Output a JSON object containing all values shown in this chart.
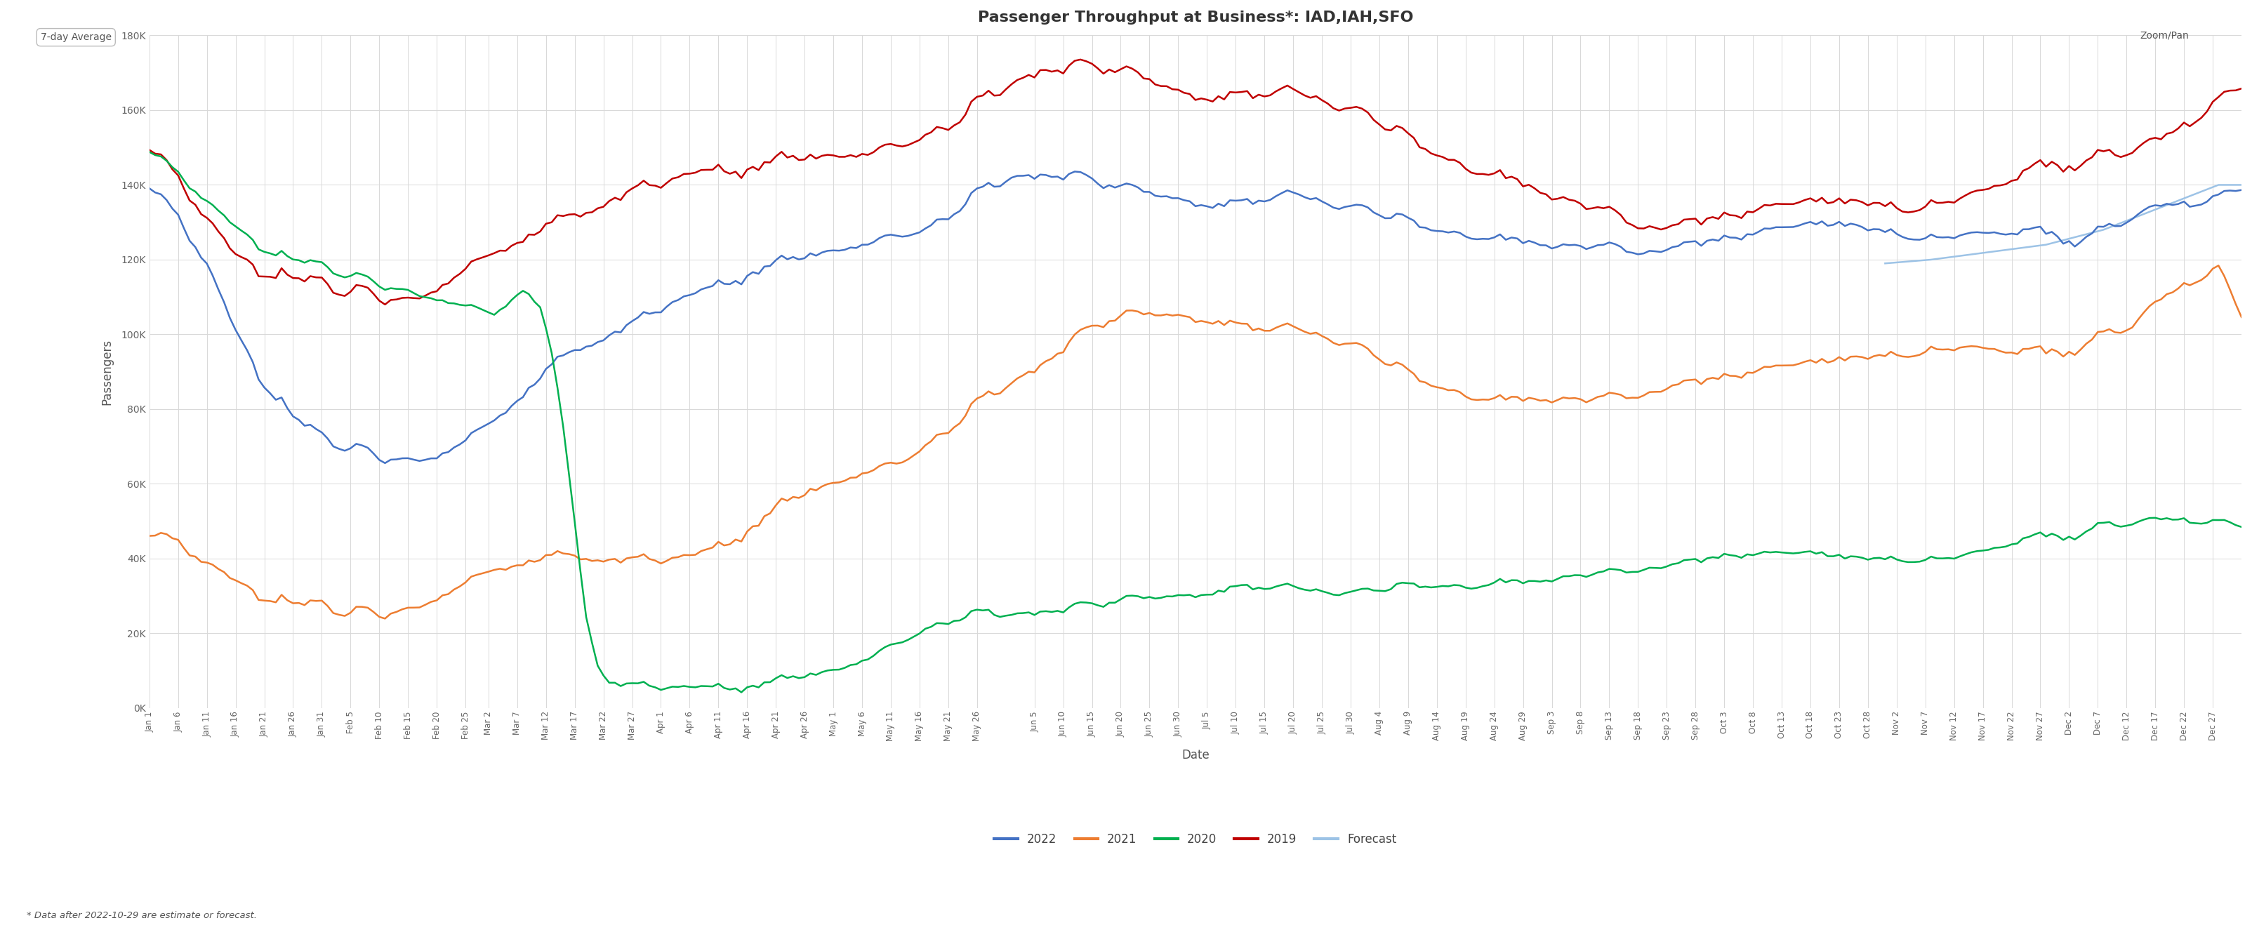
{
  "title": "Passenger Throughput at Business*: IAD,IAH,SFO",
  "xlabel": "Date",
  "ylabel": "Passengers",
  "footnote": "* Data after 2022-10-29 are estimate or forecast.",
  "top_left_label": "7-day Average",
  "top_right_label": "Zoom/Pan",
  "background_color": "#ffffff",
  "grid_color": "#d8d8d8",
  "ylim": [
    0,
    180000
  ],
  "yticks": [
    0,
    20000,
    40000,
    60000,
    80000,
    100000,
    120000,
    140000,
    160000,
    180000
  ],
  "series": {
    "2022": {
      "color": "#4472C4",
      "linewidth": 1.8
    },
    "2021": {
      "color": "#ED7D31",
      "linewidth": 1.8
    },
    "2020": {
      "color": "#00B050",
      "linewidth": 1.8
    },
    "2019": {
      "color": "#C00000",
      "linewidth": 1.8
    },
    "Forecast": {
      "color": "#9DC3E6",
      "linewidth": 1.8
    }
  }
}
